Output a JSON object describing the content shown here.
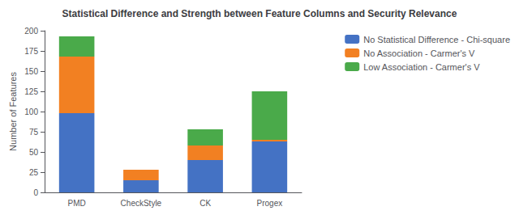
{
  "chart_data": {
    "type": "bar",
    "title": "Statistical Difference and Strength between Feature Columns and Security Relevance",
    "ylabel": "Number of Features",
    "categories": [
      "PMD",
      "CheckStyle",
      "CK",
      "Progex"
    ],
    "series": [
      {
        "name": "No Statistical Difference - Chi-square",
        "color": "#4472c4",
        "values": [
          98,
          15,
          40,
          63
        ]
      },
      {
        "name": "No Association - Carmer's V",
        "color": "#f28022",
        "values": [
          70,
          13,
          18,
          2
        ]
      },
      {
        "name": "Low Association - Carmer's V",
        "color": "#4aaa4a",
        "values": [
          25,
          0,
          20,
          60
        ]
      }
    ],
    "stacked": true,
    "ylim": [
      0,
      200
    ],
    "yticks": [
      0,
      25,
      50,
      75,
      100,
      125,
      150,
      175,
      200
    ],
    "grid": false,
    "legend": "right"
  }
}
